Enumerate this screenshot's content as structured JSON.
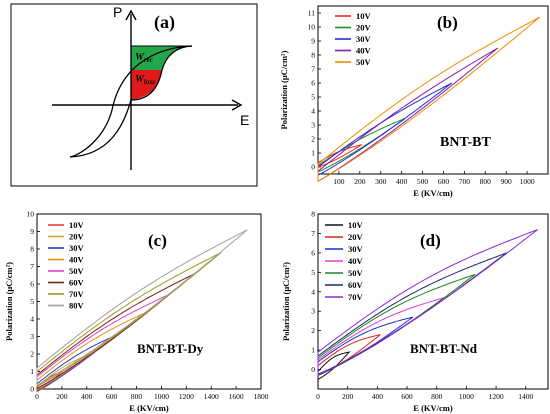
{
  "schematic": {
    "panel_label": "(a)",
    "y_axis_label": "P",
    "x_axis_label": "E",
    "region_rec_label": "W",
    "region_rec_sub": "rec",
    "region_loss_label": "W",
    "region_loss_sub": "loss",
    "colors": {
      "rec": "#22a84a",
      "loss": "#e01a1a"
    }
  },
  "chart_data": [
    {
      "type": "line",
      "panel_label": "(b)",
      "annotation": "BNT-BT",
      "xlabel": "E (KV/cm)",
      "ylabel": "Polarization (μC/cm²)",
      "xlim": [
        0,
        1100
      ],
      "ylim": [
        -0.5,
        11.5
      ],
      "xticks": [
        100,
        200,
        300,
        400,
        500,
        600,
        700,
        800,
        900,
        1000
      ],
      "yticks": [
        0,
        1,
        2,
        3,
        4,
        5,
        6,
        7,
        8,
        9,
        10,
        11
      ],
      "legend_position": "top-left",
      "series": [
        {
          "name": "10V",
          "color": "#ff2020",
          "emax": 210,
          "pmax": 1.6,
          "pr": 0.3,
          "width": 0.35
        },
        {
          "name": "20V",
          "color": "#1a8f1a",
          "emax": 420,
          "pmax": 3.5,
          "pr": 0.1,
          "width": 0.5
        },
        {
          "name": "30V",
          "color": "#1f2fd0",
          "emax": 640,
          "pmax": 6.0,
          "pr": 0.0,
          "width": 0.65
        },
        {
          "name": "40V",
          "color": "#8a1ab0",
          "emax": 860,
          "pmax": 8.5,
          "pr": -0.3,
          "width": 0.8
        },
        {
          "name": "50V",
          "color": "#f08c00",
          "emax": 1060,
          "pmax": 10.7,
          "pr": 0.2,
          "width": 1.35
        }
      ]
    },
    {
      "type": "line",
      "panel_label": "(c)",
      "annotation": "BNT-BT-Dy",
      "xlabel": "E (KV/cm)",
      "ylabel": "Polarization (μC/cm²)",
      "xlim": [
        0,
        1800
      ],
      "ylim": [
        0,
        10
      ],
      "xticks": [
        0,
        200,
        400,
        600,
        800,
        1000,
        1200,
        1400,
        1600,
        1800
      ],
      "yticks": [
        0,
        1,
        2,
        3,
        4,
        5,
        6,
        7,
        8,
        9,
        10
      ],
      "legend_position": "top-left",
      "series": [
        {
          "name": "10V",
          "color": "#e8403a",
          "emax": 200,
          "pmax": 1.0,
          "pr": 0.1,
          "width": 0.25
        },
        {
          "name": "20V",
          "color": "#d7a63a",
          "emax": 420,
          "pmax": 2.0,
          "pr": 0.15,
          "width": 0.35
        },
        {
          "name": "30V",
          "color": "#2a3ec0",
          "emax": 640,
          "pmax": 3.1,
          "pr": 0.3,
          "width": 0.45
        },
        {
          "name": "40V",
          "color": "#e8901a",
          "emax": 850,
          "pmax": 4.3,
          "pr": 0.5,
          "width": 0.6
        },
        {
          "name": "50V",
          "color": "#e03fd0",
          "emax": 1060,
          "pmax": 5.4,
          "pr": 0.7,
          "width": 0.75
        },
        {
          "name": "60V",
          "color": "#7a1f10",
          "emax": 1270,
          "pmax": 6.6,
          "pr": 0.8,
          "width": 0.85
        },
        {
          "name": "70V",
          "color": "#9a9a20",
          "emax": 1480,
          "pmax": 7.8,
          "pr": 1.0,
          "width": 0.95
        },
        {
          "name": "80V",
          "color": "#a0a0a0",
          "emax": 1690,
          "pmax": 9.1,
          "pr": 1.2,
          "width": 1.1
        }
      ]
    },
    {
      "type": "line",
      "panel_label": "(d)",
      "annotation": "BNT-BT-Nd",
      "xlabel": "E (KV/cm)",
      "ylabel": "Polarization (μC/cm²)",
      "xlim": [
        0,
        1550
      ],
      "ylim": [
        -1,
        8
      ],
      "xticks": [
        0,
        200,
        400,
        600,
        800,
        1000,
        1200,
        1400
      ],
      "yticks": [
        0,
        1,
        2,
        3,
        4,
        5,
        6,
        7,
        8
      ],
      "legend_position": "top-left",
      "series": [
        {
          "name": "10V",
          "color": "#101010",
          "emax": 210,
          "pmax": 0.9,
          "pr": -0.1,
          "width": 0.45
        },
        {
          "name": "20V",
          "color": "#e02020",
          "emax": 420,
          "pmax": 1.8,
          "pr": 0.2,
          "width": 0.55
        },
        {
          "name": "30V",
          "color": "#1a2fd0",
          "emax": 640,
          "pmax": 2.7,
          "pr": 0.4,
          "width": 0.7
        },
        {
          "name": "40V",
          "color": "#e53bd6",
          "emax": 850,
          "pmax": 3.7,
          "pr": 0.5,
          "width": 0.85
        },
        {
          "name": "50V",
          "color": "#1a8a1a",
          "emax": 1060,
          "pmax": 4.9,
          "pr": 0.6,
          "width": 1.0
        },
        {
          "name": "60V",
          "color": "#1a2a6a",
          "emax": 1270,
          "pmax": 6.0,
          "pr": 0.7,
          "width": 1.1
        },
        {
          "name": "70V",
          "color": "#8a2ad8",
          "emax": 1480,
          "pmax": 7.2,
          "pr": 0.9,
          "width": 1.3
        }
      ]
    }
  ]
}
